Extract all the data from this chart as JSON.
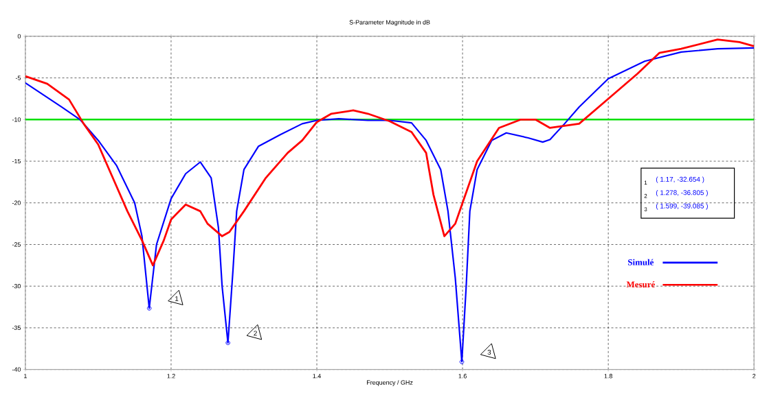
{
  "chart_data": {
    "type": "line",
    "title": "S-Parameter Magnitude in dB",
    "xlabel": "Frequency / GHz",
    "xlim": [
      1,
      2
    ],
    "xticks": [
      1,
      1.2,
      1.4,
      1.6,
      1.8,
      2
    ],
    "ylim": [
      -40,
      0
    ],
    "yticks": [
      -40,
      -35,
      -30,
      -25,
      -20,
      -15,
      -10,
      -5,
      0
    ],
    "grid": true,
    "legend": "right",
    "line_style": "solid",
    "marker": "none",
    "ref_lines": [
      {
        "axis": "y",
        "value": -10,
        "color": "#00e000"
      }
    ],
    "series": [
      {
        "name": "Simulé",
        "color": "#0000ff",
        "x": [
          1.0,
          1.05,
          1.075,
          1.1,
          1.125,
          1.15,
          1.16,
          1.17,
          1.18,
          1.2,
          1.22,
          1.24,
          1.255,
          1.265,
          1.27,
          1.278,
          1.285,
          1.29,
          1.3,
          1.32,
          1.35,
          1.38,
          1.4,
          1.43,
          1.47,
          1.5,
          1.53,
          1.55,
          1.57,
          1.58,
          1.59,
          1.599,
          1.605,
          1.61,
          1.62,
          1.64,
          1.66,
          1.69,
          1.71,
          1.72,
          1.74,
          1.76,
          1.8,
          1.85,
          1.9,
          1.95,
          2.0
        ],
        "values": [
          -5.6,
          -8.5,
          -10,
          -12.5,
          -15.5,
          -20,
          -24,
          -32.654,
          -25,
          -19.5,
          -16.5,
          -15.1,
          -17,
          -23,
          -30,
          -36.805,
          -28,
          -21,
          -16,
          -13.2,
          -11.8,
          -10.5,
          -10.1,
          -9.9,
          -10.1,
          -10.1,
          -10.4,
          -12.5,
          -16,
          -21,
          -29,
          -39.085,
          -30,
          -21,
          -16,
          -12.5,
          -11.6,
          -12.2,
          -12.7,
          -12.4,
          -10.5,
          -8.5,
          -5.1,
          -3.0,
          -1.9,
          -1.5,
          -1.4
        ]
      },
      {
        "name": "Mesuré",
        "color": "#ff0000",
        "x": [
          1.0,
          1.03,
          1.06,
          1.08,
          1.1,
          1.12,
          1.14,
          1.16,
          1.175,
          1.19,
          1.2,
          1.22,
          1.24,
          1.25,
          1.27,
          1.28,
          1.3,
          1.33,
          1.36,
          1.38,
          1.4,
          1.42,
          1.45,
          1.47,
          1.5,
          1.53,
          1.55,
          1.56,
          1.575,
          1.59,
          1.6,
          1.62,
          1.65,
          1.68,
          1.7,
          1.72,
          1.76,
          1.8,
          1.84,
          1.87,
          1.9,
          1.95,
          1.98,
          2.0
        ],
        "values": [
          -4.8,
          -5.7,
          -7.6,
          -10.5,
          -13,
          -17,
          -21,
          -24.5,
          -27.5,
          -24.5,
          -22,
          -20.2,
          -21,
          -22.5,
          -24,
          -23.5,
          -21,
          -17,
          -14,
          -12.5,
          -10.3,
          -9.3,
          -8.9,
          -9.3,
          -10.2,
          -11.5,
          -14,
          -19,
          -24,
          -22.5,
          -20,
          -15,
          -11,
          -10,
          -10,
          -11,
          -10.5,
          -7.5,
          -4.5,
          -2,
          -1.5,
          -0.4,
          -0.7,
          -1.2
        ]
      }
    ],
    "annotations": [
      "1",
      "2",
      "3",
      "( 1.17, -32.654 )",
      "( 1.278, -36.805 )",
      "( 1.599, -39.085 )"
    ]
  }
}
